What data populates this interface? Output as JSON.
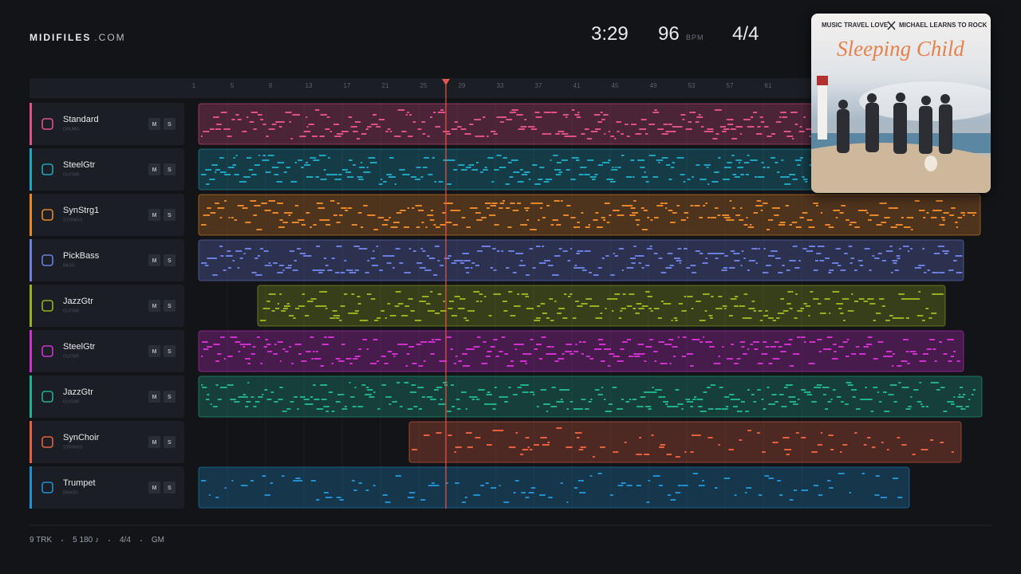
{
  "header": {
    "brand": "MIDIFILES",
    "brand_suffix": ".COM",
    "time": "3:29",
    "tempo": "96",
    "tempo_unit": "BPM",
    "time_signature": "4/4"
  },
  "cover": {
    "artist_1": "MUSIC TRAVEL LOVE",
    "artist_2": "MICHAEL LEARNS TO ROCK",
    "title": "Sleeping Child"
  },
  "ruler": [
    "1",
    "5",
    "9",
    "13",
    "17",
    "21",
    "25",
    "29",
    "33",
    "37",
    "41",
    "45",
    "49",
    "53",
    "57",
    "61"
  ],
  "tracks": [
    {
      "name": "Standard",
      "category": "DRUMS",
      "color": "#e0508a",
      "buttons": [
        "M",
        "S"
      ]
    },
    {
      "name": "SteelGtr",
      "category": "GUITAR",
      "color": "#1ea5c0",
      "buttons": [
        "M",
        "S"
      ]
    },
    {
      "name": "SynStrg1",
      "category": "STRINGS",
      "color": "#e8862a",
      "buttons": [
        "M",
        "S"
      ]
    },
    {
      "name": "PickBass",
      "category": "BASS",
      "color": "#6b7fe0",
      "buttons": [
        "M",
        "S"
      ]
    },
    {
      "name": "JazzGtr",
      "category": "GUITAR",
      "color": "#98b020",
      "buttons": [
        "M",
        "S"
      ]
    },
    {
      "name": "SteelGtr",
      "category": "GUITAR",
      "color": "#d030d0",
      "buttons": [
        "M",
        "S"
      ]
    },
    {
      "name": "JazzGtr",
      "category": "GUITAR",
      "color": "#20b090",
      "buttons": [
        "M",
        "S"
      ]
    },
    {
      "name": "SynChoir",
      "category": "STRINGS",
      "color": "#e86040",
      "buttons": [
        "M",
        "S"
      ]
    },
    {
      "name": "Trumpet",
      "category": "BRASS",
      "color": "#2090d0",
      "buttons": [
        "M",
        "S"
      ]
    }
  ],
  "footer": [
    "9 TRK",
    "5 180 ♪",
    "4/4",
    "GM"
  ]
}
